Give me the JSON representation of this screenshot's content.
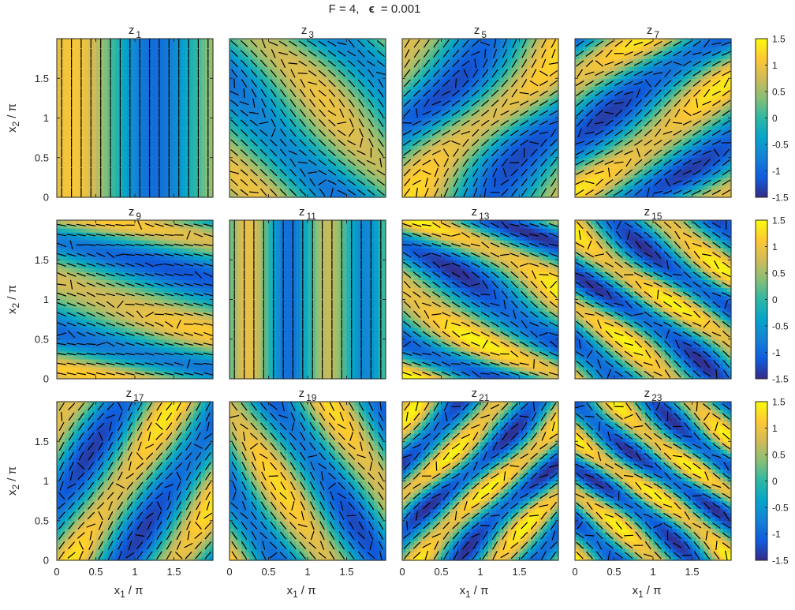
{
  "figure": {
    "title_prefix": "F = 4,",
    "title_eps_symbol": "ϵ",
    "title_eps_value": "= 0.001"
  },
  "colors": {
    "colormap": [
      "#352a87",
      "#0f5cdd",
      "#1481d6",
      "#06a4ca",
      "#2eb7a4",
      "#87bf77",
      "#d1bb59",
      "#fec832",
      "#f9fb0e"
    ],
    "quiver": "#000000",
    "axis": "#262626"
  },
  "chart_data": {
    "type": "heatmap",
    "overlay": "quiver",
    "rows": 3,
    "cols": 4,
    "xlabel": {
      "main": "x",
      "sub": "1",
      "rest": "/ π"
    },
    "ylabel": {
      "main": "x",
      "sub": "2",
      "rest": "/ π"
    },
    "xlim": [
      0,
      2
    ],
    "ylim": [
      0,
      2
    ],
    "xticks": [
      "0",
      "0.5",
      "1",
      "1.5"
    ],
    "xtick_values": [
      0,
      0.5,
      1,
      1.5
    ],
    "yticks": [
      "0",
      "0.5",
      "1",
      "1.5"
    ],
    "ytick_values": [
      0,
      0.5,
      1,
      1.5
    ],
    "clim": [
      -1.5,
      1.5
    ],
    "colorbar_ticks": [
      "1.5",
      "1",
      "0.5",
      "0",
      "-0.5",
      "-1",
      "-1.5"
    ],
    "colorbar_tick_values": [
      1.5,
      1,
      0.5,
      0,
      -0.5,
      -1,
      -1.5
    ],
    "panels": [
      {
        "title_main": "z",
        "title_sub": "1",
        "kx": 1.0,
        "ky": 0.0,
        "phase": 0.9,
        "amp": 1.1,
        "skew": 0.0
      },
      {
        "title_main": "z",
        "title_sub": "3",
        "kx": 1.0,
        "ky": 1.0,
        "phase": 0.3,
        "amp": 1.0,
        "skew": 0.2
      },
      {
        "title_main": "z",
        "title_sub": "5",
        "kx": 1.0,
        "ky": -1.0,
        "phase": 1.2,
        "amp": 1.3,
        "skew": 0.4
      },
      {
        "title_main": "z",
        "title_sub": "7",
        "kx": 1.0,
        "ky": -1.5,
        "phase": 2.0,
        "amp": 1.4,
        "skew": -0.3
      },
      {
        "title_main": "z",
        "title_sub": "9",
        "kx": 0.5,
        "ky": 2.0,
        "phase": 0.5,
        "amp": 1.2,
        "skew": 0.6
      },
      {
        "title_main": "z",
        "title_sub": "11",
        "kx": 2.0,
        "ky": 0.0,
        "phase": 0.0,
        "amp": 1.0,
        "skew": 0.0
      },
      {
        "title_main": "z",
        "title_sub": "13",
        "kx": 1.0,
        "ky": 2.0,
        "phase": 1.0,
        "amp": 1.5,
        "skew": 0.8
      },
      {
        "title_main": "z",
        "title_sub": "15",
        "kx": 1.5,
        "ky": 2.0,
        "phase": 2.3,
        "amp": 1.5,
        "skew": -0.5
      },
      {
        "title_main": "z",
        "title_sub": "17",
        "kx": 1.5,
        "ky": -1.0,
        "phase": 0.7,
        "amp": 1.4,
        "skew": 0.0
      },
      {
        "title_main": "z",
        "title_sub": "19",
        "kx": 1.5,
        "ky": 1.0,
        "phase": 1.9,
        "amp": 1.3,
        "skew": 0.0
      },
      {
        "title_main": "z",
        "title_sub": "21",
        "kx": 2.0,
        "ky": -2.0,
        "phase": 0.2,
        "amp": 1.5,
        "skew": 0.5
      },
      {
        "title_main": "z",
        "title_sub": "23",
        "kx": 2.0,
        "ky": 2.5,
        "phase": 1.5,
        "amp": 1.5,
        "skew": -0.6
      }
    ]
  }
}
